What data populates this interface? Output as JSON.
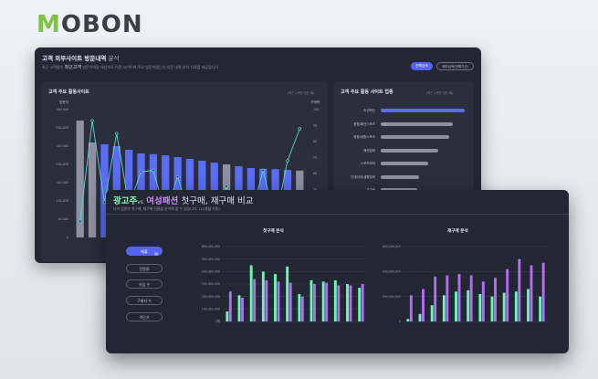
{
  "brand": {
    "logo_text": "MOBON",
    "logo_accent": "#7cc243"
  },
  "back_panel": {
    "title": "고객 외부사이트 방문내역",
    "title_suffix": "분석",
    "desc_prefix": "최근 고객들의",
    "desc_highlight": "최근고객",
    "desc_suffix": "방문이력을 대상으로 어떤 사이트에 주로 방문하였는지 방문 내역 분석 자료를 제공합니다.",
    "btn_primary": "전체검색",
    "btn_secondary": "세부검색(전체기간)",
    "visit_card": {
      "title": "고객 주요 활동사이트",
      "note": "(최근 1개월 기준, 회)",
      "left_caption": "방문자",
      "right_caption": "구매력",
      "left_ticks": [
        "350,000",
        "300,000",
        "250,000",
        "200,000",
        "150,000",
        "100,000",
        "50,000",
        "0"
      ],
      "right_ticks": [
        "100",
        "90",
        "80",
        "70",
        "60",
        "50",
        "40",
        "30",
        "20"
      ]
    },
    "industry_card": {
      "title": "고객 주요 활동 사이트 업종",
      "note": "(최근 1개월 기준, 회)",
      "items": [
        {
          "label": "미선택군",
          "value": 100,
          "color": "#5b6cf5"
        },
        {
          "label": "종합/패션스포츠",
          "value": 86,
          "color": "#8c90a0"
        },
        {
          "label": "종합/생활스포츠",
          "value": 82,
          "color": "#8c90a0"
        },
        {
          "label": "패션잡화",
          "value": 68,
          "color": "#8c90a0"
        },
        {
          "label": "스포츠레저",
          "value": 56,
          "color": "#8c90a0"
        },
        {
          "label": "인테리어/생활잡화",
          "value": 46,
          "color": "#8c90a0"
        },
        {
          "label": "유아용",
          "value": 44,
          "color": "#8c90a0"
        }
      ]
    }
  },
  "front_panel": {
    "title_green": "광고주",
    "title_vs": "vs",
    "title_purple": "여성패션",
    "title_rest": "첫구매, 재구매 비교",
    "desc": "나의 업종의 첫구매, 재구매 전환을 분석해 볼 수 있습니다. (12개월 기준)",
    "menu": [
      {
        "label": "매출",
        "active": true,
        "icon": "chart-icon"
      },
      {
        "label": "전환율",
        "active": false
      },
      {
        "label": "유입 수",
        "active": false
      },
      {
        "label": "구매자 수",
        "active": false
      },
      {
        "label": "객단가",
        "active": false
      }
    ]
  },
  "chart_data": [
    {
      "type": "bar",
      "title": "고객 주요 활동사이트",
      "note": "(최근 1개월 기준, 회)",
      "ylabel": "방문자",
      "y2label": "구매력",
      "ylim": [
        0,
        350000
      ],
      "y2lim": [
        20,
        100
      ],
      "categories": [
        "1",
        "2",
        "3",
        "4",
        "5",
        "6",
        "7",
        "8",
        "9",
        "10",
        "11",
        "12",
        "13",
        "14",
        "15",
        "16",
        "17",
        "18",
        "19"
      ],
      "series": [
        {
          "name": "방문자",
          "kind": "bar",
          "values": [
            320000,
            260000,
            255000,
            250000,
            240000,
            230000,
            228000,
            225000,
            220000,
            215000,
            210000,
            205000,
            200000,
            195000,
            190000,
            188000,
            187000,
            185000,
            183000
          ],
          "colors": [
            "#8c90a0",
            "#8c90a0",
            "#5b6cf5",
            "#5b6cf5",
            "#5b6cf5",
            "#5b6cf5",
            "#5b6cf5",
            "#5b6cf5",
            "#5b6cf5",
            "#5b6cf5",
            "#5b6cf5",
            "#5b6cf5",
            "#8c90a0",
            "#5b6cf5",
            "#5b6cf5",
            "#5b6cf5",
            "#5b6cf5",
            "#5b6cf5",
            "#8c90a0"
          ]
        },
        {
          "name": "구매력",
          "kind": "line",
          "color": "#5fd6d0",
          "values": [
            30,
            93,
            42,
            85,
            40,
            61,
            62,
            35,
            58,
            33,
            42,
            27,
            52,
            24,
            33,
            62,
            30,
            68,
            88
          ]
        }
      ]
    },
    {
      "type": "bar",
      "title": "첫구매 분석",
      "ylim": [
        0,
        600000000
      ],
      "yticks": [
        "600,000,000",
        "500,000,000",
        "400,000,000",
        "300,000,000",
        "200,000,000",
        "100,000,000",
        "0원"
      ],
      "categories": [
        "1",
        "2",
        "3",
        "4",
        "5",
        "6",
        "7",
        "8",
        "9",
        "10",
        "11",
        "12"
      ],
      "series": [
        {
          "name": "광고주",
          "color": "#6ff5b6",
          "values": [
            80000000,
            210000000,
            450000000,
            400000000,
            380000000,
            440000000,
            220000000,
            330000000,
            320000000,
            330000000,
            300000000,
            270000000
          ]
        },
        {
          "name": "여성패션",
          "color": "#b070f0",
          "values": [
            240000000,
            190000000,
            340000000,
            330000000,
            320000000,
            310000000,
            200000000,
            300000000,
            310000000,
            290000000,
            290000000,
            300000000
          ]
        }
      ]
    },
    {
      "type": "bar",
      "title": "재구매 분석",
      "ylim": [
        0,
        600000000
      ],
      "yticks": [
        "600,000,000",
        "400,000,000",
        "200,000,000",
        "0"
      ],
      "categories": [
        "1",
        "2",
        "3",
        "4",
        "5",
        "6",
        "7",
        "8",
        "9",
        "10",
        "11",
        "12"
      ],
      "series": [
        {
          "name": "광고주",
          "color": "#6ff5b6",
          "values": [
            20000000,
            60000000,
            130000000,
            210000000,
            240000000,
            250000000,
            220000000,
            200000000,
            230000000,
            240000000,
            260000000,
            200000000
          ]
        },
        {
          "name": "여성패션",
          "color": "#b070f0",
          "values": [
            210000000,
            260000000,
            360000000,
            370000000,
            380000000,
            370000000,
            320000000,
            350000000,
            420000000,
            500000000,
            450000000,
            470000000
          ]
        }
      ]
    }
  ]
}
